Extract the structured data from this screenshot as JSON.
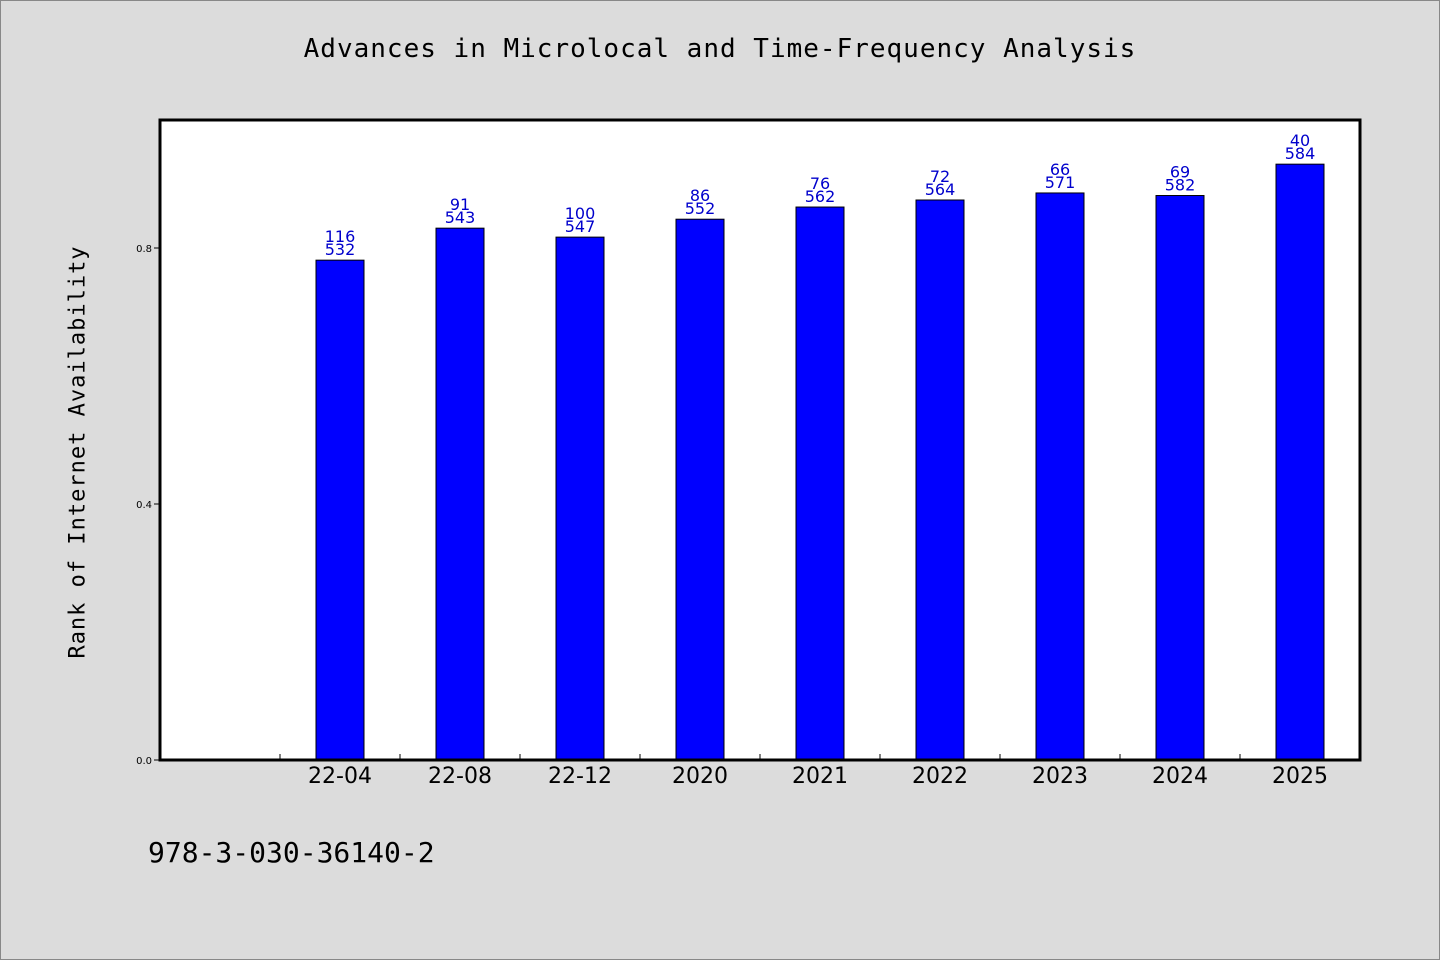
{
  "page": {
    "footer_text": "978-3-030-36140-2"
  },
  "colors": {
    "background": "#dcdcdc",
    "plot_background": "#ffffff",
    "bar": "#0000ff",
    "bar_label": "#0000cc"
  },
  "chart_data": {
    "type": "bar",
    "title": "Advances in Microlocal and Time-Frequency Analysis",
    "xlabel": "",
    "ylabel": "Rank of Internet Availability",
    "ylim": [
      0.0,
      1.0
    ],
    "yticks": [
      0.0,
      0.4,
      0.8
    ],
    "ytick_labels": [
      "0.0",
      "0.4",
      "0.8"
    ],
    "grid": false,
    "legend": "none",
    "categories": [
      "22-04",
      "22-08",
      "22-12",
      "2020",
      "2021",
      "2022",
      "2023",
      "2024",
      "2025"
    ],
    "values": [
      0.781,
      0.831,
      0.817,
      0.845,
      0.864,
      0.875,
      0.886,
      0.882,
      0.931
    ],
    "bar_labels_top": [
      "116",
      "91",
      "100",
      "86",
      "76",
      "72",
      "66",
      "69",
      "40"
    ],
    "bar_labels_bottom": [
      "532",
      "543",
      "547",
      "552",
      "562",
      "564",
      "571",
      "582",
      "584"
    ]
  }
}
